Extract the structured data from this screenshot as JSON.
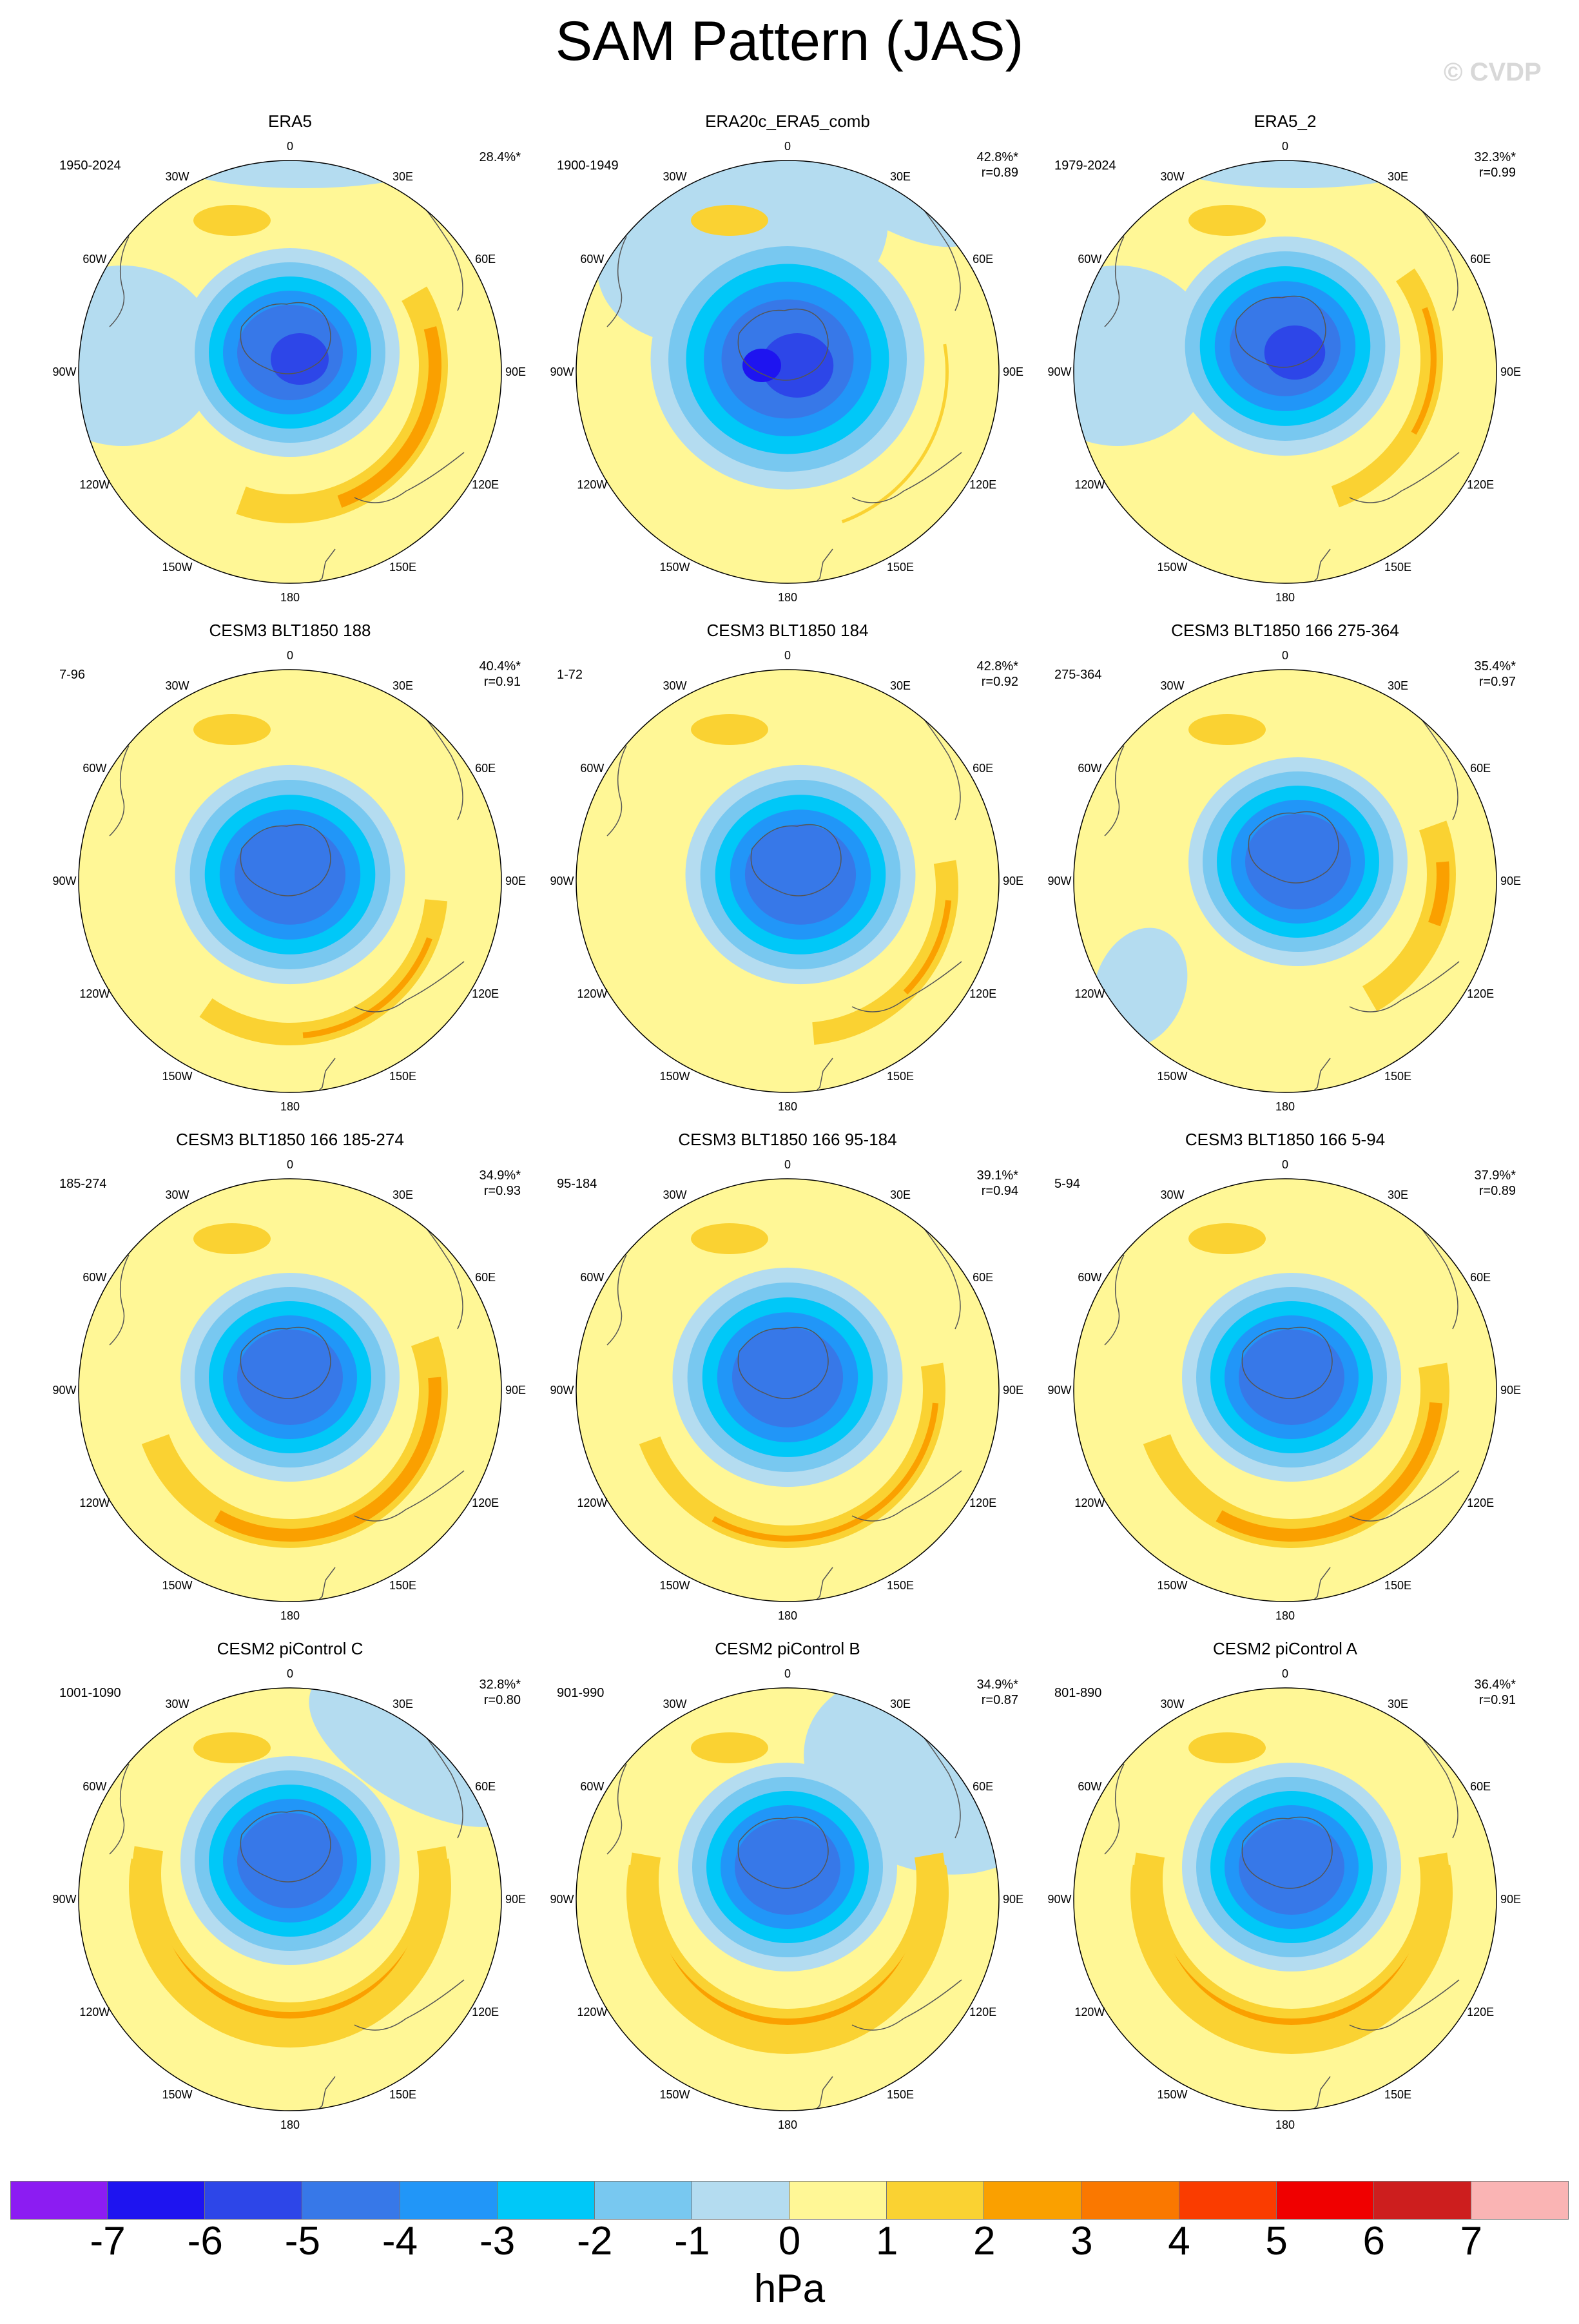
{
  "title": "SAM Pattern (JAS)",
  "watermark": "© CVDP",
  "units": "hPa",
  "lon_labels": [
    "0",
    "30E",
    "60E",
    "90E",
    "120E",
    "150E",
    "180",
    "150W",
    "120W",
    "90W",
    "60W",
    "30W"
  ],
  "colorbar": {
    "colors": [
      "#8c1cf2",
      "#1e14f0",
      "#2d46e8",
      "#3778e8",
      "#2196f8",
      "#00c8f8",
      "#78c8f0",
      "#b4dcf0",
      "#fff796",
      "#fad232",
      "#faa000",
      "#fa7800",
      "#fa3c00",
      "#f00000",
      "#cd1e1e",
      "#fab4b4"
    ],
    "ticks": [
      "-7",
      "-6",
      "-5",
      "-4",
      "-3",
      "-2",
      "-1",
      "0",
      "1",
      "2",
      "3",
      "4",
      "5",
      "6",
      "7"
    ]
  },
  "panels": [
    {
      "name": "ERA5",
      "period": "1950-2024",
      "pct": "28.4%*",
      "corr": ""
    },
    {
      "name": "ERA20c_ERA5_comb",
      "period": "1900-1949",
      "pct": "42.8%*",
      "corr": "r=0.89"
    },
    {
      "name": "ERA5_2",
      "period": "1979-2024",
      "pct": "32.3%*",
      "corr": "r=0.99"
    },
    {
      "name": "CESM3 BLT1850 188",
      "period": "7-96",
      "pct": "40.4%*",
      "corr": "r=0.91"
    },
    {
      "name": "CESM3 BLT1850 184",
      "period": "1-72",
      "pct": "42.8%*",
      "corr": "r=0.92"
    },
    {
      "name": "CESM3 BLT1850 166 275-364",
      "period": "275-364",
      "pct": "35.4%*",
      "corr": "r=0.97"
    },
    {
      "name": "CESM3 BLT1850 166 185-274",
      "period": "185-274",
      "pct": "34.9%*",
      "corr": "r=0.93"
    },
    {
      "name": "CESM3 BLT1850 166 95-184",
      "period": "95-184",
      "pct": "39.1%*",
      "corr": "r=0.94"
    },
    {
      "name": "CESM3 BLT1850 166 5-94",
      "period": "5-94",
      "pct": "37.9%*",
      "corr": "r=0.89"
    },
    {
      "name": "CESM2 piControl C",
      "period": "1001-1090",
      "pct": "32.8%*",
      "corr": "r=0.80"
    },
    {
      "name": "CESM2 piControl B",
      "period": "901-990",
      "pct": "34.9%*",
      "corr": "r=0.87"
    },
    {
      "name": "CESM2 piControl A",
      "period": "801-890",
      "pct": "36.4%*",
      "corr": "r=0.91"
    }
  ]
}
